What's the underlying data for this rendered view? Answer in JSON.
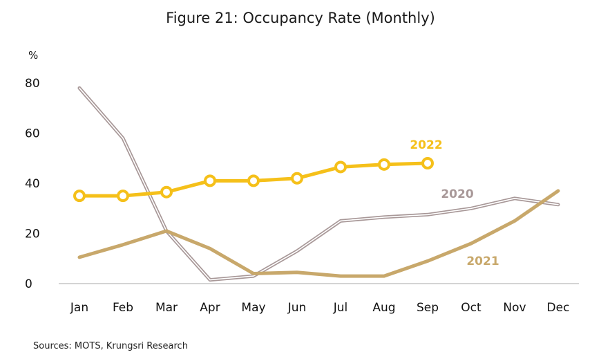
{
  "title": "Figure 21: Occupancy Rate (Monthly)",
  "source": "Sources: MOTS, Krungsri Research",
  "chart_data": {
    "type": "line",
    "title": "Figure 21: Occupancy Rate (Monthly)",
    "ylabel": "%",
    "ylim": [
      0,
      80
    ],
    "yticks": [
      0,
      20,
      40,
      60,
      80
    ],
    "grid": false,
    "categories": [
      "Jan",
      "Feb",
      "Mar",
      "Apr",
      "May",
      "Jun",
      "Jul",
      "Aug",
      "Sep",
      "Oct",
      "Nov",
      "Dec"
    ],
    "series": [
      {
        "name": "2020",
        "color": "#a89898",
        "style": "double",
        "values": [
          78,
          58,
          21,
          1.5,
          3,
          13,
          25,
          26.5,
          27.5,
          30,
          34,
          31.5
        ]
      },
      {
        "name": "2021",
        "color": "#c8a86b",
        "style": "solid",
        "values": [
          10.5,
          15.5,
          21,
          14,
          4,
          4.5,
          3,
          3,
          9,
          16,
          25,
          37
        ]
      },
      {
        "name": "2022",
        "color": "#f5c01a",
        "style": "markers",
        "values": [
          35,
          35,
          36.5,
          41,
          41,
          42,
          46.5,
          47.5,
          48,
          null,
          null,
          null
        ]
      }
    ]
  }
}
